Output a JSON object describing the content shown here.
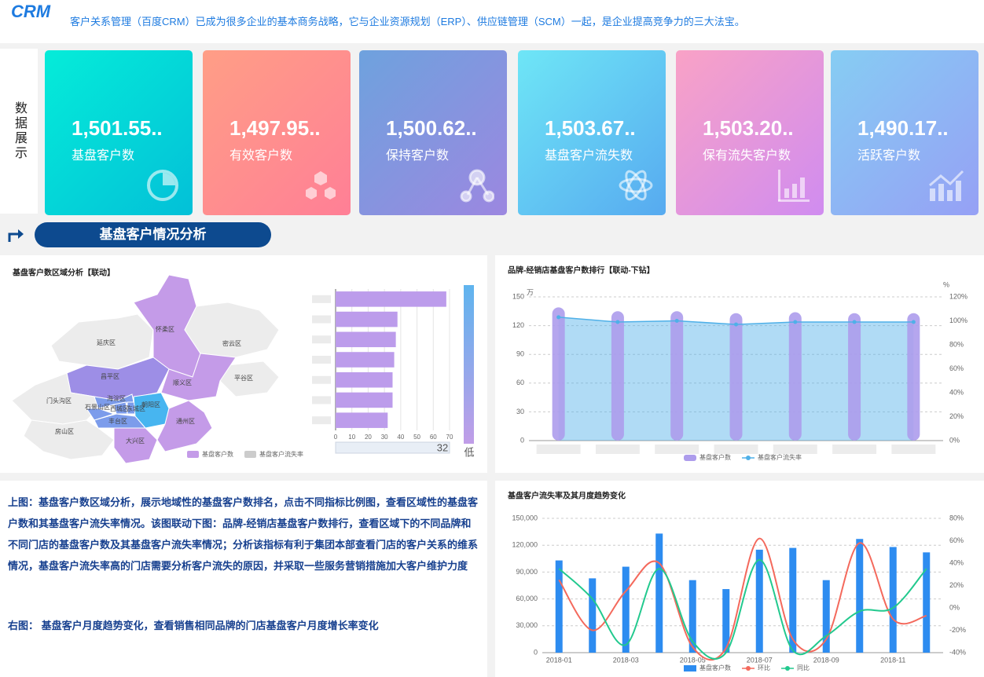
{
  "header": {
    "logo": "CRM",
    "intro": "客户关系管理（百度CRM）已成为很多企业的基本商务战略，它与企业资源规划（ERP）、供应链管理（SCM）一起，是企业提高竞争力的三大法宝。"
  },
  "side_label": "数据展示",
  "kpis": [
    {
      "value": "1,501.55..",
      "label": "基盘客户数"
    },
    {
      "value": "1,497.95..",
      "label": "有效客户数"
    },
    {
      "value": "1,500.62..",
      "label": "保持客户数"
    },
    {
      "value": "1,503.67..",
      "label": "基盘客户流失数"
    },
    {
      "value": "1,503.20..",
      "label": "保有流失客户数"
    },
    {
      "value": "1,490.17..",
      "label": "活跃客户数"
    }
  ],
  "section_title": "基盘客户情况分析",
  "chart_data": [
    {
      "type": "map",
      "title": "基盘客户数区域分析【联动】",
      "regions": [
        {
          "name": "延庆区",
          "color": "#ececec"
        },
        {
          "name": "怀柔区",
          "color": "#c49be8"
        },
        {
          "name": "密云区",
          "color": "#ececec"
        },
        {
          "name": "平谷区",
          "color": "#ececec"
        },
        {
          "name": "昌平区",
          "color": "#9d8ee6"
        },
        {
          "name": "顺义区",
          "color": "#c49be8"
        },
        {
          "name": "门头沟区",
          "color": "#ececec"
        },
        {
          "name": "海淀区",
          "color": "#7c9ceb"
        },
        {
          "name": "石景山区",
          "color": "#7c9ceb"
        },
        {
          "name": "西城区",
          "color": "#7c9ceb"
        },
        {
          "name": "东城区",
          "color": "#7c9ceb"
        },
        {
          "name": "朝阳区",
          "color": "#47b5f0"
        },
        {
          "name": "丰台区",
          "color": "#7c9ceb"
        },
        {
          "name": "房山区",
          "color": "#ececec"
        },
        {
          "name": "大兴区",
          "color": "#c49be8"
        },
        {
          "name": "通州区",
          "color": "#c49be8"
        }
      ],
      "legend": [
        {
          "name": "基盘客户数",
          "color": "#c49be8"
        },
        {
          "name": "基盘客户流失率",
          "color": "#cccccc"
        }
      ],
      "visual_map": {
        "handle": 32,
        "low_label": "低"
      }
    },
    {
      "type": "hbar",
      "categories": [
        null,
        null,
        null,
        null,
        null,
        null,
        null
      ],
      "values": [
        68,
        38,
        37,
        36,
        35,
        35,
        32
      ],
      "color": "#bc9ceb",
      "xlim": [
        0,
        70
      ],
      "xticks": [
        0,
        10,
        20,
        30,
        40,
        50,
        60,
        70
      ],
      "grid": true
    },
    {
      "type": "combo",
      "title": "品牌-经销店基盘客户数排行【联动-下钻】",
      "categories": [
        null,
        null,
        null,
        null,
        null,
        null,
        null
      ],
      "ylim": [
        0,
        150
      ],
      "yticks": [
        0,
        30,
        60,
        90,
        120,
        150
      ],
      "y_unit": "万",
      "y2lim": [
        0,
        120
      ],
      "y2ticks": [
        {
          "value": 0,
          "label": "0%"
        },
        {
          "value": 20,
          "label": "20%"
        },
        {
          "value": 40,
          "label": "40%"
        },
        {
          "value": 60,
          "label": "60%"
        },
        {
          "value": 80,
          "label": "80%"
        },
        {
          "value": 100,
          "label": "100%"
        },
        {
          "value": 120,
          "label": "120%"
        }
      ],
      "y2_unit": "%",
      "grid": true,
      "series": [
        {
          "name": "基盘客户数",
          "kind": "bar",
          "color": "#ad9cec",
          "values": [
            139,
            135,
            135,
            133,
            134,
            133,
            133
          ]
        },
        {
          "name": "基盘客户流失率",
          "kind": "area",
          "axis": "y2",
          "color": "#4fb0e8",
          "values": [
            103,
            99,
            100,
            97,
            99,
            99,
            99
          ]
        }
      ]
    },
    {
      "type": "combo",
      "title": "基盘客户流失率及其月度趋势变化",
      "categories": [
        "2018-01",
        null,
        "2018-03",
        null,
        "2018-05",
        null,
        "2018-07",
        null,
        "2018-09",
        null,
        "2018-11",
        null
      ],
      "ylim": [
        0,
        150000
      ],
      "yticks": [
        0,
        {
          "value": 30000,
          "label": "30,000"
        },
        {
          "value": 60000,
          "label": "60,000"
        },
        {
          "value": 90000,
          "label": "90,000"
        },
        {
          "value": 120000,
          "label": "120,000"
        },
        {
          "value": 150000,
          "label": "150,000"
        }
      ],
      "y2lim": [
        -40,
        80
      ],
      "y2ticks": [
        {
          "value": -40,
          "label": "-40%"
        },
        {
          "value": -20,
          "label": "-20%"
        },
        {
          "value": 0,
          "label": "0%"
        },
        {
          "value": 20,
          "label": "20%"
        },
        {
          "value": 40,
          "label": "40%"
        },
        {
          "value": 60,
          "label": "60%"
        },
        {
          "value": 80,
          "label": "80%"
        }
      ],
      "grid": true,
      "series": [
        {
          "name": "基盘客户数",
          "kind": "bar",
          "color": "#2d8cf0",
          "values": [
            103000,
            83000,
            96000,
            133000,
            81000,
            71000,
            115000,
            117000,
            81000,
            127000,
            118000,
            112000
          ]
        },
        {
          "name": "环比",
          "kind": "line",
          "axis": "y2",
          "color": "#f4695c",
          "values": [
            25,
            -20,
            15,
            40,
            -35,
            -36,
            62,
            -28,
            -28,
            58,
            -10,
            -7
          ]
        },
        {
          "name": "同比",
          "kind": "line",
          "axis": "y2",
          "color": "#22c98e",
          "values": [
            35,
            8,
            -33,
            35,
            -30,
            -40,
            43,
            -38,
            -25,
            -3,
            0,
            35
          ]
        }
      ]
    }
  ],
  "description": [
    "上图：基盘客户数区域分析，展示地域性的基盘客户数排名，点击不同指标比例图，查看区域性的基盘客户数和其基盘客户流失率情况。该图联动下图：品牌-经销店基盘客户数排行，查看区域下的不同品牌和不同门店的基盘客户数及其基盘客户流失率情况；分析该指标有利于集团本部查看门店的客户关系的维系情况，基盘客户流失率高的门店需要分析客户流失的原因，并采取一些服务营销措施加大客户维护力度",
    "右图： 基盘客户月度趋势变化，查看销售相同品牌的门店基盘客户月度增长率变化"
  ]
}
